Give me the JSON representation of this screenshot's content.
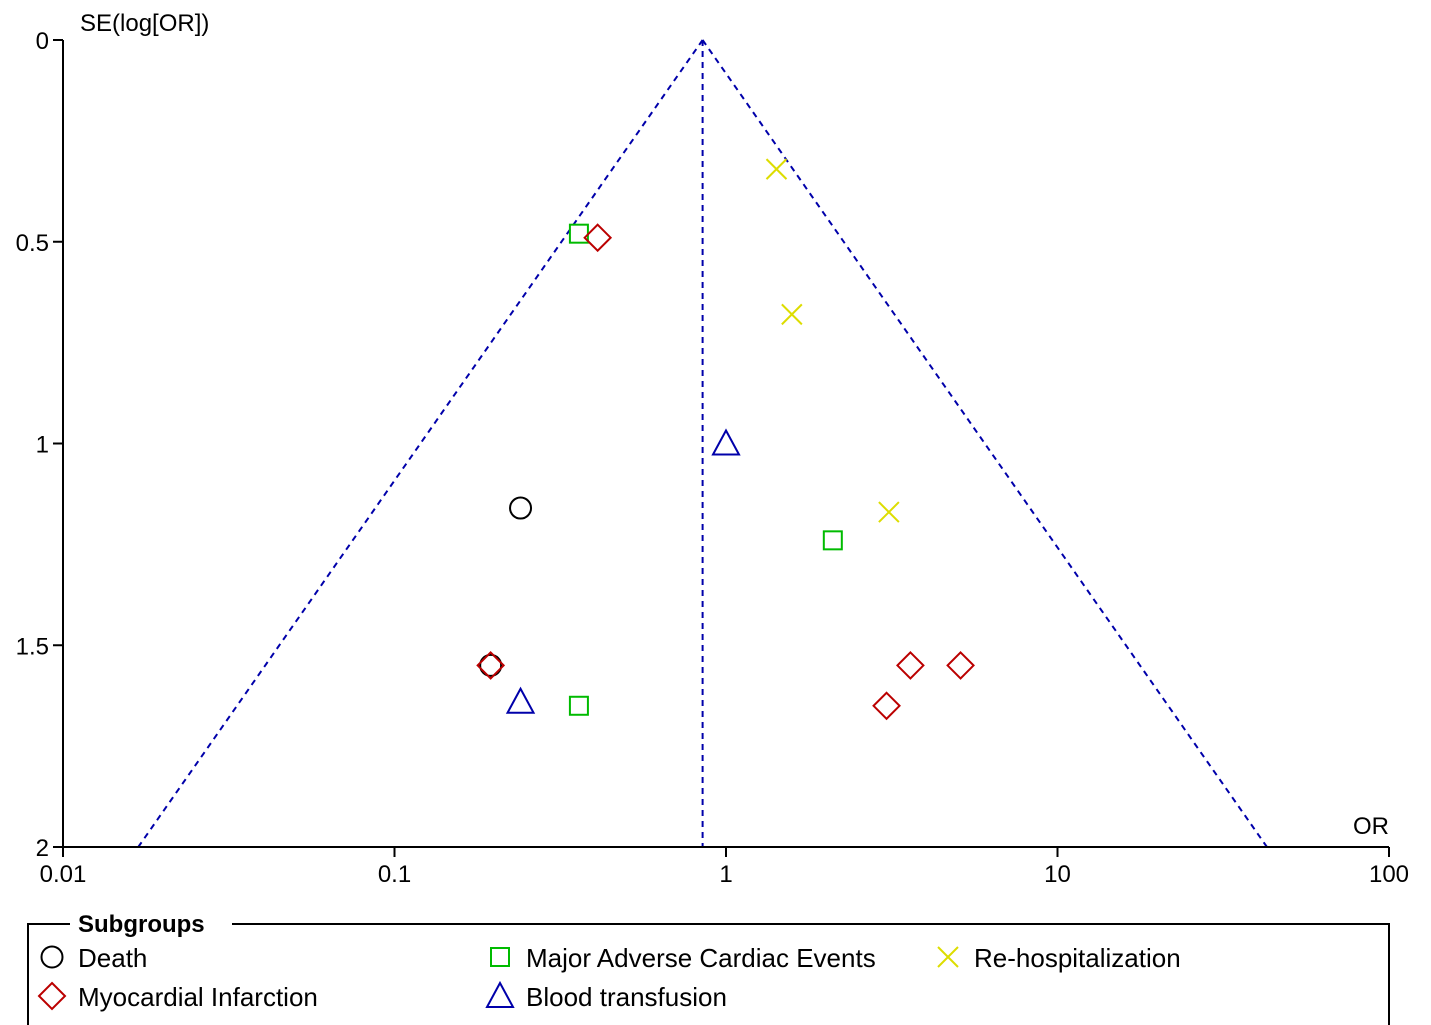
{
  "chart_data": {
    "type": "scatter",
    "subtype": "funnel-plot",
    "title": "",
    "xlabel": "OR",
    "ylabel": "SE(log[OR])",
    "x_scale": "log",
    "x_range": [
      0.01,
      100
    ],
    "x_ticks": [
      "0.01",
      "0.1",
      "1",
      "10",
      "100"
    ],
    "y_range": [
      0,
      2
    ],
    "y_inverted": true,
    "y_ticks": [
      "0",
      "0.5",
      "1",
      "1.5",
      "2"
    ],
    "pooled_or": 0.85,
    "funnel_lines": "dashed",
    "funnel_color": "#0000aa",
    "legend": {
      "title": "Subgroups",
      "position": "bottom"
    },
    "series": [
      {
        "name": "Death",
        "marker": "circle",
        "color": "#000000",
        "points": [
          {
            "x": 0.24,
            "y": 1.16
          },
          {
            "x": 0.195,
            "y": 1.55
          }
        ]
      },
      {
        "name": "Major Adverse Cardiac Events",
        "marker": "square",
        "color": "#00bb00",
        "points": [
          {
            "x": 0.36,
            "y": 0.48
          },
          {
            "x": 2.1,
            "y": 1.24
          },
          {
            "x": 0.36,
            "y": 1.65
          }
        ]
      },
      {
        "name": "Re-hospitalization",
        "marker": "x",
        "color": "#dddd00",
        "points": [
          {
            "x": 1.42,
            "y": 0.32
          },
          {
            "x": 1.58,
            "y": 0.68
          },
          {
            "x": 3.1,
            "y": 1.17
          }
        ]
      },
      {
        "name": "Myocardial Infarction",
        "marker": "diamond",
        "color": "#bb0000",
        "points": [
          {
            "x": 0.41,
            "y": 0.49
          },
          {
            "x": 0.195,
            "y": 1.55
          },
          {
            "x": 3.6,
            "y": 1.55
          },
          {
            "x": 5.1,
            "y": 1.55
          },
          {
            "x": 3.05,
            "y": 1.65
          }
        ]
      },
      {
        "name": "Blood transfusion",
        "marker": "triangle",
        "color": "#0000aa",
        "points": [
          {
            "x": 1.0,
            "y": 1.0
          },
          {
            "x": 0.24,
            "y": 1.64
          }
        ]
      }
    ]
  }
}
